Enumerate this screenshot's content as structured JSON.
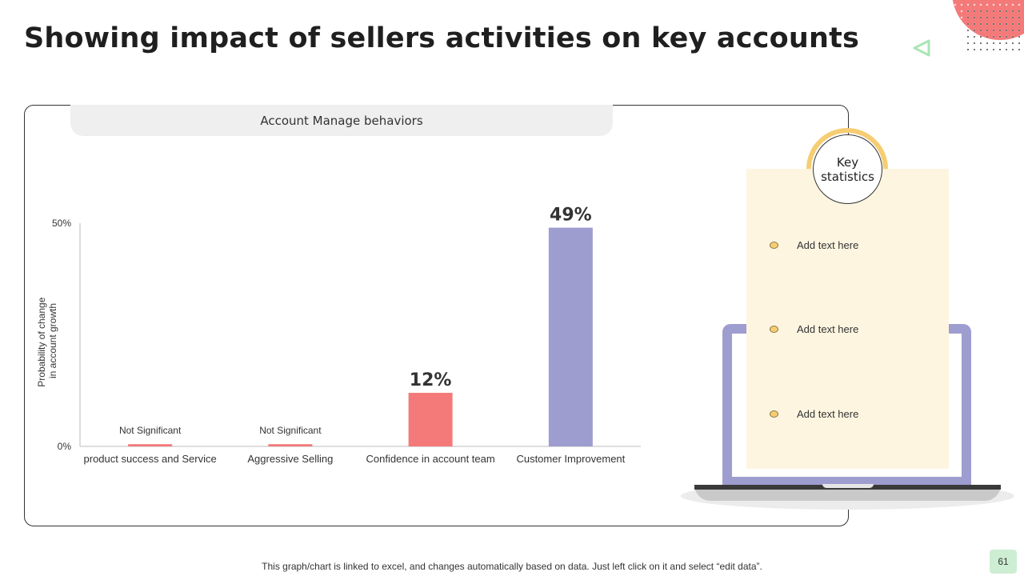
{
  "slide": {
    "title": "Showing impact of sellers activities on key accounts",
    "footer_note": "This graph/chart is linked to excel, and changes automatically based on data. Just left click on it and select “edit data”.",
    "page_number": "61"
  },
  "panel": {
    "header": "Account Manage behaviors"
  },
  "key_stats": {
    "heading": "Key statistics",
    "items": [
      "Add text here",
      "Add text here",
      "Add text here"
    ]
  },
  "colors": {
    "accent_red": "#f47a7a",
    "accent_purple": "#9e9dd0",
    "accent_yellow": "#f6cd72",
    "card_bg": "#fdf5e0",
    "page_badge": "#cdeed3"
  },
  "chart_data": {
    "type": "bar",
    "categories": [
      "product success and Service",
      "Aggressive Selling",
      "Confidence in account team",
      "Customer Improvement"
    ],
    "values": [
      0.5,
      0.5,
      12,
      49
    ],
    "data_labels": [
      "Not Significant",
      "Not Significant",
      "12%",
      "49%"
    ],
    "bar_colors": [
      "#f47a7a",
      "#f47a7a",
      "#f47a7a",
      "#9e9dd0"
    ],
    "ylabel": "Probability of change in account growth",
    "ylabel_lines": [
      "Probability of change",
      "in account growth"
    ],
    "yticks": [
      0,
      50
    ],
    "ytick_labels": [
      "0%",
      "50%"
    ],
    "ylim": [
      0,
      50
    ],
    "grid": false,
    "legend": "none"
  }
}
